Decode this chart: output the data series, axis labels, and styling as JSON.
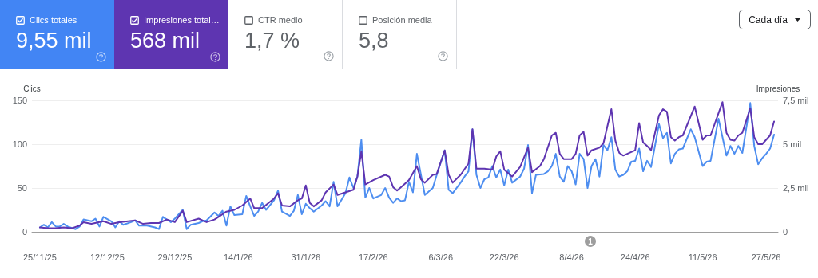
{
  "chart_data": [
    {
      "type": "other",
      "categories": [
        "Clics totales",
        "Impresiones total…",
        "CTR medio",
        "Posición media"
      ],
      "value_labels": [
        "9,55 mil",
        "568 mil",
        "1,7 %",
        "5,8"
      ],
      "colors": [
        "#4285f4",
        "#5e35b1",
        null,
        null
      ],
      "annotations": [
        "Cada día"
      ]
    },
    {
      "type": "line",
      "ylabel": "Clics",
      "y2label": "Impresiones",
      "xlim": [
        "2025-11-23",
        "2026-05-30"
      ],
      "xticks": [
        {
          "value": "2025-11-25",
          "label": "25/11/25"
        },
        {
          "value": "2025-12-12",
          "label": "12/12/25"
        },
        {
          "value": "2025-12-29",
          "label": "29/12/25"
        },
        {
          "value": "2026-01-14",
          "label": "14/1/26"
        },
        {
          "value": "2026-01-31",
          "label": "31/1/26"
        },
        {
          "value": "2026-02-17",
          "label": "17/2/26"
        },
        {
          "value": "2026-03-06",
          "label": "6/3/26"
        },
        {
          "value": "2026-03-22",
          "label": "22/3/26"
        },
        {
          "value": "2026-04-08",
          "label": "8/4/26"
        },
        {
          "value": "2026-04-24",
          "label": "24/4/26"
        },
        {
          "value": "2026-05-11",
          "label": "11/5/26"
        },
        {
          "value": "2026-05-27",
          "label": "27/5/26"
        }
      ],
      "ylim": [
        0,
        150
      ],
      "yticks": [
        0,
        50,
        100,
        150
      ],
      "y2lim": [
        0,
        7.5
      ],
      "y2ticks": [
        0,
        {
          "value": 2.5,
          "label": "2,5 mil"
        },
        {
          "value": 5,
          "label": "5 mil"
        },
        {
          "value": 7.5,
          "label": "7,5 mil"
        }
      ],
      "grid": "y",
      "marker": "none",
      "line_style": "solid",
      "annotations": [
        "1"
      ],
      "series": [
        {
          "color": "#4e8ef0",
          "x": [
            "2025-11-25",
            "2025-11-26",
            "2025-11-27",
            "2025-11-28",
            "2025-11-29",
            "2025-11-30",
            "2025-12-01",
            "2025-12-02",
            "2025-12-04",
            "2025-12-05",
            "2025-12-06",
            "2025-12-08",
            "2025-12-09",
            "2025-12-10",
            "2025-12-11",
            "2025-12-13",
            "2025-12-14",
            "2025-12-15",
            "2025-12-16",
            "2025-12-18",
            "2025-12-19",
            "2025-12-20",
            "2025-12-22",
            "2025-12-24",
            "2025-12-25",
            "2025-12-26",
            "2025-12-27",
            "2025-12-28",
            "2025-12-29",
            "2025-12-31",
            "2026-01-01",
            "2026-01-02",
            "2026-01-04",
            "2026-01-05",
            "2026-01-06",
            "2026-01-08",
            "2026-01-09",
            "2026-01-10",
            "2026-01-11",
            "2026-01-12",
            "2026-01-13",
            "2026-01-15",
            "2026-01-16",
            "2026-01-17",
            "2026-01-18",
            "2026-01-19",
            "2026-01-20",
            "2026-01-21",
            "2026-01-23",
            "2026-01-24",
            "2026-01-25",
            "2026-01-27",
            "2026-01-28",
            "2026-01-29",
            "2026-01-30",
            "2026-01-31",
            "2026-02-01",
            "2026-02-02",
            "2026-02-04",
            "2026-02-05",
            "2026-02-06",
            "2026-02-07",
            "2026-02-08",
            "2026-02-10",
            "2026-02-11",
            "2026-02-12",
            "2026-02-13",
            "2026-02-14",
            "2026-02-15",
            "2026-02-16",
            "2026-02-17",
            "2026-02-19",
            "2026-02-20",
            "2026-02-21",
            "2026-02-22",
            "2026-02-23",
            "2026-02-24",
            "2026-02-25",
            "2026-02-26",
            "2026-02-27",
            "2026-02-28",
            "2026-03-02",
            "2026-03-04",
            "2026-03-05",
            "2026-03-07",
            "2026-03-08",
            "2026-03-09",
            "2026-03-11",
            "2026-03-12",
            "2026-03-13",
            "2026-03-14",
            "2026-03-15",
            "2026-03-16",
            "2026-03-17",
            "2026-03-18",
            "2026-03-19",
            "2026-03-20",
            "2026-03-21",
            "2026-03-22",
            "2026-03-23",
            "2026-03-24",
            "2026-03-26",
            "2026-03-27",
            "2026-03-28",
            "2026-03-29",
            "2026-03-30",
            "2026-04-01",
            "2026-04-02",
            "2026-04-03",
            "2026-04-04",
            "2026-04-05",
            "2026-04-06",
            "2026-04-07",
            "2026-04-08",
            "2026-04-09",
            "2026-04-10",
            "2026-04-11",
            "2026-04-12",
            "2026-04-13",
            "2026-04-14",
            "2026-04-15",
            "2026-04-16",
            "2026-04-17",
            "2026-04-18",
            "2026-04-19",
            "2026-04-20",
            "2026-04-21",
            "2026-04-22",
            "2026-04-23",
            "2026-04-24",
            "2026-04-25",
            "2026-04-26",
            "2026-04-27",
            "2026-04-28",
            "2026-04-30",
            "2026-05-01",
            "2026-05-02",
            "2026-05-03",
            "2026-05-04",
            "2026-05-05",
            "2026-05-06",
            "2026-05-08",
            "2026-05-09",
            "2026-05-11",
            "2026-05-12",
            "2026-05-13",
            "2026-05-15",
            "2026-05-17",
            "2026-05-18",
            "2026-05-19",
            "2026-05-20",
            "2026-05-21",
            "2026-05-23",
            "2026-05-24",
            "2026-05-25",
            "2026-05-26",
            "2026-05-27",
            "2026-05-28",
            "2026-05-29"
          ],
          "values": [
            5,
            8,
            5,
            11,
            6,
            6,
            9,
            6,
            3,
            6,
            14,
            12,
            15,
            6,
            17,
            12,
            5,
            12,
            8,
            11,
            13,
            7,
            7,
            5,
            3,
            17,
            14,
            11,
            15,
            25,
            3,
            8,
            10,
            12,
            13,
            22,
            18,
            24,
            7,
            29,
            19,
            20,
            41,
            29,
            18,
            23,
            33,
            25,
            36,
            47,
            23,
            18,
            24,
            42,
            20,
            32,
            27,
            23,
            30,
            35,
            29,
            57,
            29,
            44,
            62,
            50,
            63,
            105,
            39,
            50,
            38,
            42,
            50,
            39,
            33,
            38,
            35,
            36,
            57,
            45,
            89,
            42,
            50,
            65,
            93,
            48,
            44,
            56,
            63,
            69,
            117,
            65,
            50,
            60,
            62,
            75,
            62,
            71,
            53,
            71,
            56,
            63,
            72,
            99,
            44,
            65,
            66,
            69,
            75,
            89,
            63,
            57,
            75,
            69,
            54,
            89,
            83,
            50,
            75,
            83,
            63,
            99,
            93,
            108,
            71,
            63,
            65,
            69,
            80,
            81,
            95,
            69,
            81,
            74,
            123,
            107,
            113,
            78,
            89,
            94,
            95,
            117,
            108,
            75,
            80,
            81,
            129,
            87,
            98,
            89,
            98,
            90,
            147,
            98,
            77,
            84,
            89,
            95,
            111
          ]
        },
        {
          "color": "#5e35b1",
          "axis": "y2",
          "x": [
            "2025-11-25",
            "2025-11-27",
            "2025-11-29",
            "2025-12-01",
            "2025-12-03",
            "2025-12-05",
            "2025-12-06",
            "2025-12-08",
            "2025-12-11",
            "2025-12-13",
            "2025-12-15",
            "2025-12-19",
            "2025-12-21",
            "2025-12-23",
            "2025-12-25",
            "2025-12-27",
            "2025-12-29",
            "2025-12-31",
            "2026-01-01",
            "2026-01-04",
            "2026-01-06",
            "2026-01-08",
            "2026-01-09",
            "2026-01-11",
            "2026-01-13",
            "2026-01-15",
            "2026-01-17",
            "2026-01-18",
            "2026-01-20",
            "2026-01-23",
            "2026-01-24",
            "2026-01-25",
            "2026-01-27",
            "2026-01-29",
            "2026-01-30",
            "2026-01-31",
            "2026-02-01",
            "2026-02-02",
            "2026-02-04",
            "2026-02-05",
            "2026-02-07",
            "2026-02-08",
            "2026-02-10",
            "2026-02-12",
            "2026-02-13",
            "2026-02-14",
            "2026-02-15",
            "2026-02-17",
            "2026-02-20",
            "2026-02-21",
            "2026-02-22",
            "2026-02-23",
            "2026-02-24",
            "2026-02-26",
            "2026-02-28",
            "2026-03-01",
            "2026-03-02",
            "2026-03-04",
            "2026-03-05",
            "2026-03-07",
            "2026-03-08",
            "2026-03-09",
            "2026-03-11",
            "2026-03-13",
            "2026-03-14",
            "2026-03-15",
            "2026-03-17",
            "2026-03-19",
            "2026-03-20",
            "2026-03-21",
            "2026-03-22",
            "2026-03-24",
            "2026-03-26",
            "2026-03-28",
            "2026-03-29",
            "2026-03-31",
            "2026-04-01",
            "2026-04-03",
            "2026-04-04",
            "2026-04-05",
            "2026-04-06",
            "2026-04-08",
            "2026-04-09",
            "2026-04-10",
            "2026-04-11",
            "2026-04-12",
            "2026-04-13",
            "2026-04-15",
            "2026-04-16",
            "2026-04-18",
            "2026-04-19",
            "2026-04-20",
            "2026-04-21",
            "2026-04-22",
            "2026-04-24",
            "2026-04-25",
            "2026-04-26",
            "2026-04-27",
            "2026-04-28",
            "2026-04-30",
            "2026-05-01",
            "2026-05-02",
            "2026-05-03",
            "2026-05-04",
            "2026-05-05",
            "2026-05-06",
            "2026-05-09",
            "2026-05-11",
            "2026-05-12",
            "2026-05-13",
            "2026-05-16",
            "2026-05-17",
            "2026-05-18",
            "2026-05-19",
            "2026-05-20",
            "2026-05-21",
            "2026-05-23",
            "2026-05-24",
            "2026-05-25",
            "2026-05-26",
            "2026-05-28",
            "2026-05-29"
          ],
          "values": [
            0.25,
            0.2,
            0.2,
            0.25,
            0.2,
            0.35,
            0.55,
            0.45,
            0.6,
            0.45,
            0.55,
            0.65,
            0.45,
            0.5,
            0.5,
            0.7,
            0.55,
            1.2,
            0.55,
            0.75,
            0.55,
            0.7,
            0.85,
            1.15,
            1.25,
            1.5,
            1.9,
            1.35,
            1.35,
            1.9,
            2.2,
            1.5,
            1.45,
            1.8,
            1.9,
            2.65,
            1.65,
            1.45,
            1.8,
            2.25,
            2.7,
            2.1,
            2.25,
            2.4,
            3.15,
            4.6,
            2.7,
            2.95,
            3.25,
            3.15,
            2.55,
            2.35,
            2.55,
            2.95,
            3.75,
            3,
            2.8,
            3.25,
            3.3,
            4.65,
            3.25,
            2.8,
            3.25,
            3.9,
            5.85,
            3.6,
            3.6,
            3.55,
            4.3,
            4.6,
            3.55,
            3.15,
            3.7,
            4.8,
            3.4,
            3.75,
            4.15,
            5.5,
            5.65,
            4.45,
            4.15,
            4.15,
            4.45,
            5.5,
            5.7,
            4.35,
            4.65,
            4.8,
            5.05,
            7,
            5.2,
            4.5,
            4.35,
            4.45,
            4.65,
            6.2,
            5.1,
            4.9,
            4.65,
            6.65,
            7,
            6.85,
            5.4,
            5.2,
            5.4,
            5.5,
            7.15,
            5.25,
            5.5,
            5.5,
            7.4,
            5.65,
            5.25,
            5.2,
            5.5,
            5.65,
            7.05,
            5.4,
            5,
            5,
            5.5,
            6.3
          ]
        }
      ]
    }
  ]
}
